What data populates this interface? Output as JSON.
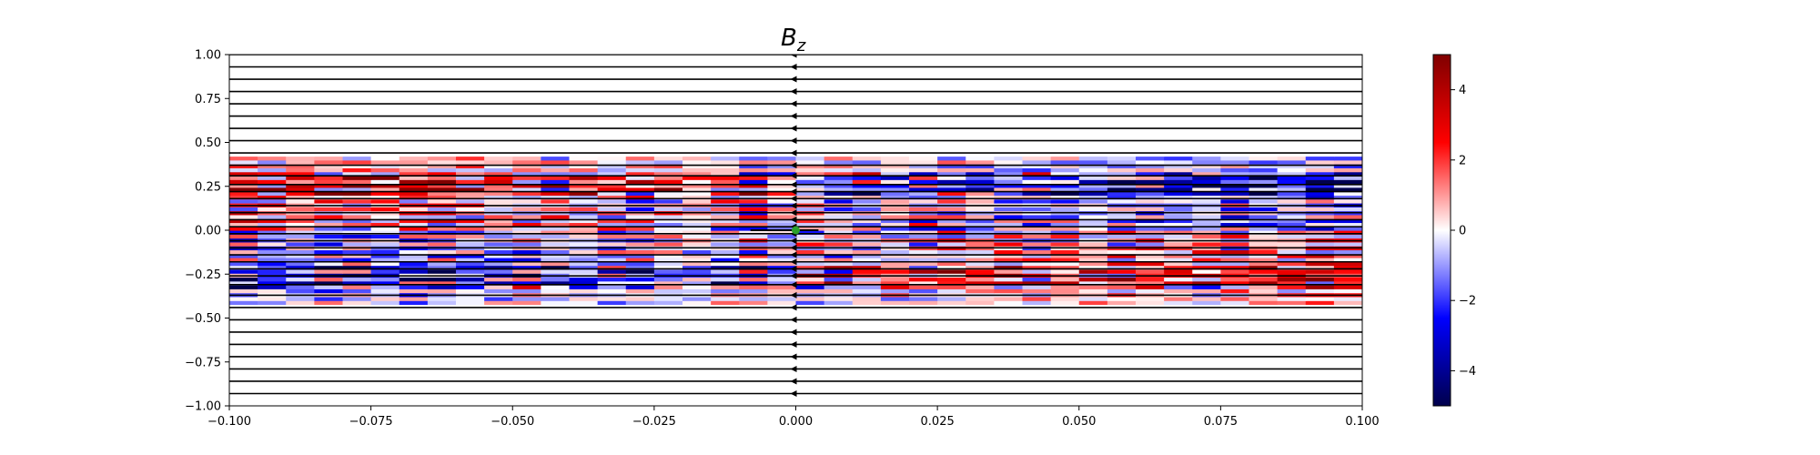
{
  "chart_data": {
    "type": "heatmap",
    "title": "B",
    "title_subscript": "z",
    "xlabel": "",
    "ylabel": "",
    "xlim": [
      -0.1,
      0.1
    ],
    "ylim": [
      -1.0,
      1.0
    ],
    "grid": false,
    "legend": "none",
    "x_ticks": [
      -0.1,
      -0.075,
      -0.05,
      -0.025,
      0.0,
      0.025,
      0.05,
      0.075,
      0.1
    ],
    "x_tick_labels": [
      "−0.100",
      "−0.075",
      "−0.050",
      "−0.025",
      "0.000",
      "0.025",
      "0.050",
      "0.075",
      "0.100"
    ],
    "y_ticks": [
      1.0,
      0.75,
      0.5,
      0.25,
      0.0,
      -0.25,
      -0.5,
      -0.75,
      -1.0
    ],
    "y_tick_labels": [
      "1.00",
      "0.75",
      "0.50",
      "0.25",
      "0.00",
      "−0.25",
      "−0.50",
      "−0.75",
      "−1.00"
    ],
    "colorbar": {
      "colormap": "seismic",
      "range": [
        -5,
        5
      ],
      "ticks": [
        4,
        2,
        0,
        -2,
        -4
      ],
      "tick_labels": [
        "4",
        "2",
        "0",
        "−2",
        "−4"
      ],
      "colors": [
        "#00004c",
        "#0000ff",
        "#ffffff",
        "#ff0000",
        "#800000"
      ]
    },
    "field_lines": {
      "direction": "leftward",
      "color": "#000000",
      "y_values": [
        1.0,
        0.93,
        0.86,
        0.79,
        0.72,
        0.65,
        0.58,
        0.51,
        0.44,
        0.37,
        0.31,
        0.26,
        0.22,
        0.18,
        0.14,
        0.1,
        0.06,
        0.02,
        -0.02,
        -0.06,
        -0.1,
        -0.14,
        -0.18,
        -0.22,
        -0.26,
        -0.31,
        -0.37,
        -0.44,
        -0.51,
        -0.58,
        -0.65,
        -0.72,
        -0.79,
        -0.86,
        -0.93
      ]
    },
    "marker": {
      "x": 0.0,
      "y": 0.0,
      "color": "#2ca02c"
    },
    "marker_line": {
      "x": [
        -0.008,
        0.004
      ],
      "y": 0.0
    },
    "field_structure": {
      "upper_band": {
        "y_range": [
          0.0,
          0.4
        ],
        "dominant_sign": "positive at left, negative at right"
      },
      "lower_band": {
        "y_range": [
          -0.4,
          0.0
        ],
        "dominant_sign": "negative at left, positive at right"
      }
    }
  }
}
